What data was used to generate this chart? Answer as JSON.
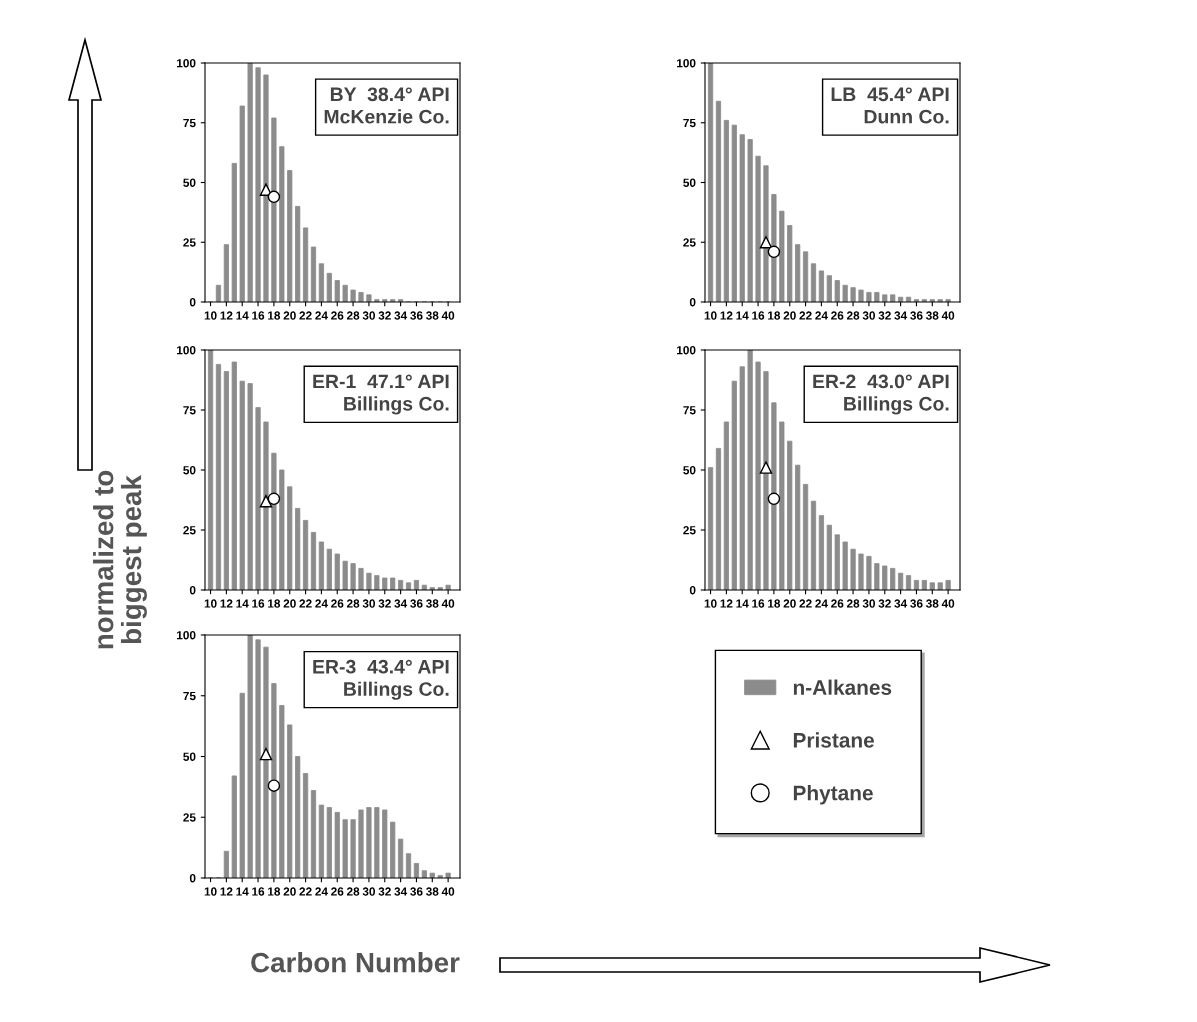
{
  "chart_data": [
    {
      "type": "bar",
      "x": [
        10,
        11,
        12,
        13,
        14,
        15,
        16,
        17,
        18,
        19,
        20,
        21,
        22,
        23,
        24,
        25,
        26,
        27,
        28,
        29,
        30,
        31,
        32,
        33,
        34,
        35,
        36,
        37,
        38,
        39,
        40
      ],
      "xlim": [
        9.3,
        41.5
      ],
      "xticks": [
        10,
        12,
        14,
        16,
        18,
        20,
        22,
        24,
        26,
        28,
        30,
        32,
        34,
        36,
        38,
        40
      ],
      "ylim": [
        0,
        100
      ],
      "yticks": [
        0,
        25,
        50,
        75,
        100
      ],
      "annotations": [
        "BY  38.4° API\nMcKenzie Co."
      ],
      "legend": "bottom right",
      "series": [
        {
          "name": "n-Alkanes",
          "color": "#8c8c8c",
          "values": [
            0,
            7,
            24,
            58,
            82,
            100,
            98,
            95,
            77,
            65,
            55,
            40,
            31,
            23,
            16,
            12,
            9,
            7,
            5,
            4,
            3,
            1,
            1,
            1,
            1,
            0,
            0,
            0,
            0,
            0,
            0
          ]
        },
        {
          "name": "Pristane",
          "type": "scatter",
          "marker": "triangle",
          "color": "#ffffff",
          "values": [
            null,
            null,
            null,
            null,
            null,
            null,
            null,
            47,
            null,
            null,
            null,
            null,
            null,
            null,
            null,
            null,
            null,
            null,
            null,
            null,
            null,
            null,
            null,
            null,
            null,
            null,
            null,
            null,
            null,
            null,
            null
          ]
        },
        {
          "name": "Phytane",
          "type": "scatter",
          "marker": "circle",
          "color": "#ffffff",
          "values": [
            null,
            null,
            null,
            null,
            null,
            null,
            null,
            null,
            44,
            null,
            null,
            null,
            null,
            null,
            null,
            null,
            null,
            null,
            null,
            null,
            null,
            null,
            null,
            null,
            null,
            null,
            null,
            null,
            null,
            null,
            null
          ]
        }
      ]
    },
    {
      "type": "bar",
      "x": [
        10,
        11,
        12,
        13,
        14,
        15,
        16,
        17,
        18,
        19,
        20,
        21,
        22,
        23,
        24,
        25,
        26,
        27,
        28,
        29,
        30,
        31,
        32,
        33,
        34,
        35,
        36,
        37,
        38,
        39,
        40
      ],
      "xlim": [
        9.3,
        41.5
      ],
      "xticks": [
        10,
        12,
        14,
        16,
        18,
        20,
        22,
        24,
        26,
        28,
        30,
        32,
        34,
        36,
        38,
        40
      ],
      "ylim": [
        0,
        100
      ],
      "yticks": [
        0,
        25,
        50,
        75,
        100
      ],
      "annotations": [
        "LB  45.4° API\nDunn Co."
      ],
      "series": [
        {
          "color": "#8c8c8c",
          "values": [
            100,
            84,
            76,
            74,
            70,
            68,
            61,
            57,
            45,
            38,
            32,
            24,
            21,
            16,
            13,
            11,
            9,
            7,
            6,
            5,
            4,
            4,
            3,
            3,
            2,
            2,
            1,
            1,
            1,
            1,
            1
          ]
        },
        {
          "type": "scatter",
          "marker": "triangle",
          "color": "#ffffff",
          "values": [
            null,
            null,
            null,
            null,
            null,
            null,
            null,
            25,
            null,
            null,
            null,
            null,
            null,
            null,
            null,
            null,
            null,
            null,
            null,
            null,
            null,
            null,
            null,
            null,
            null,
            null,
            null,
            null,
            null,
            null,
            null
          ]
        },
        {
          "type": "scatter",
          "marker": "circle",
          "color": "#ffffff",
          "values": [
            null,
            null,
            null,
            null,
            null,
            null,
            null,
            null,
            21,
            null,
            null,
            null,
            null,
            null,
            null,
            null,
            null,
            null,
            null,
            null,
            null,
            null,
            null,
            null,
            null,
            null,
            null,
            null,
            null,
            null,
            null
          ]
        }
      ]
    },
    {
      "type": "bar",
      "x": [
        10,
        11,
        12,
        13,
        14,
        15,
        16,
        17,
        18,
        19,
        20,
        21,
        22,
        23,
        24,
        25,
        26,
        27,
        28,
        29,
        30,
        31,
        32,
        33,
        34,
        35,
        36,
        37,
        38,
        39,
        40
      ],
      "xlim": [
        9.3,
        41.5
      ],
      "xticks": [
        10,
        12,
        14,
        16,
        18,
        20,
        22,
        24,
        26,
        28,
        30,
        32,
        34,
        36,
        38,
        40
      ],
      "ylim": [
        0,
        100
      ],
      "yticks": [
        0,
        25,
        50,
        75,
        100
      ],
      "annotations": [
        "ER-1  47.1° API\nBillings Co."
      ],
      "series": [
        {
          "color": "#8c8c8c",
          "values": [
            100,
            94,
            91,
            95,
            87,
            86,
            76,
            70,
            57,
            50,
            43,
            34,
            29,
            24,
            20,
            17,
            15,
            12,
            11,
            9,
            7,
            6,
            5,
            5,
            4,
            3,
            4,
            2,
            1,
            1,
            2
          ]
        },
        {
          "type": "scatter",
          "marker": "triangle",
          "color": "#ffffff",
          "values": [
            null,
            null,
            null,
            null,
            null,
            null,
            null,
            37,
            null,
            null,
            null,
            null,
            null,
            null,
            null,
            null,
            null,
            null,
            null,
            null,
            null,
            null,
            null,
            null,
            null,
            null,
            null,
            null,
            null,
            null,
            null
          ]
        },
        {
          "type": "scatter",
          "marker": "circle",
          "color": "#ffffff",
          "values": [
            null,
            null,
            null,
            null,
            null,
            null,
            null,
            null,
            38,
            null,
            null,
            null,
            null,
            null,
            null,
            null,
            null,
            null,
            null,
            null,
            null,
            null,
            null,
            null,
            null,
            null,
            null,
            null,
            null,
            null,
            null
          ]
        }
      ]
    },
    {
      "type": "bar",
      "x": [
        10,
        11,
        12,
        13,
        14,
        15,
        16,
        17,
        18,
        19,
        20,
        21,
        22,
        23,
        24,
        25,
        26,
        27,
        28,
        29,
        30,
        31,
        32,
        33,
        34,
        35,
        36,
        37,
        38,
        39,
        40
      ],
      "xlim": [
        9.3,
        41.5
      ],
      "xticks": [
        10,
        12,
        14,
        16,
        18,
        20,
        22,
        24,
        26,
        28,
        30,
        32,
        34,
        36,
        38,
        40
      ],
      "ylim": [
        0,
        100
      ],
      "yticks": [
        0,
        25,
        50,
        75,
        100
      ],
      "annotations": [
        "ER-2  43.0° API\nBillings Co."
      ],
      "series": [
        {
          "color": "#8c8c8c",
          "values": [
            51,
            59,
            70,
            87,
            93,
            100,
            95,
            91,
            78,
            70,
            62,
            52,
            44,
            37,
            31,
            27,
            23,
            20,
            17,
            15,
            14,
            11,
            10,
            9,
            7,
            6,
            4,
            4,
            3,
            3,
            4
          ]
        },
        {
          "type": "scatter",
          "marker": "triangle",
          "color": "#ffffff",
          "values": [
            null,
            null,
            null,
            null,
            null,
            null,
            null,
            51,
            null,
            null,
            null,
            null,
            null,
            null,
            null,
            null,
            null,
            null,
            null,
            null,
            null,
            null,
            null,
            null,
            null,
            null,
            null,
            null,
            null,
            null,
            null
          ]
        },
        {
          "type": "scatter",
          "marker": "circle",
          "color": "#ffffff",
          "values": [
            null,
            null,
            null,
            null,
            null,
            null,
            null,
            null,
            38,
            null,
            null,
            null,
            null,
            null,
            null,
            null,
            null,
            null,
            null,
            null,
            null,
            null,
            null,
            null,
            null,
            null,
            null,
            null,
            null,
            null,
            null
          ]
        }
      ]
    },
    {
      "type": "bar",
      "x": [
        10,
        11,
        12,
        13,
        14,
        15,
        16,
        17,
        18,
        19,
        20,
        21,
        22,
        23,
        24,
        25,
        26,
        27,
        28,
        29,
        30,
        31,
        32,
        33,
        34,
        35,
        36,
        37,
        38,
        39,
        40
      ],
      "xlim": [
        9.3,
        41.5
      ],
      "xticks": [
        10,
        12,
        14,
        16,
        18,
        20,
        22,
        24,
        26,
        28,
        30,
        32,
        34,
        36,
        38,
        40
      ],
      "ylim": [
        0,
        100
      ],
      "yticks": [
        0,
        25,
        50,
        75,
        100
      ],
      "annotations": [
        "ER-3  43.4° API\nBillings Co."
      ],
      "xlabel": "Carbon Number",
      "ylabel": "normalized to\nbiggest peak",
      "series": [
        {
          "color": "#8c8c8c",
          "values": [
            0,
            0,
            11,
            42,
            76,
            100,
            98,
            95,
            80,
            71,
            63,
            50,
            43,
            36,
            30,
            29,
            27,
            24,
            24,
            28,
            29,
            29,
            28,
            23,
            16,
            10,
            6,
            3,
            2,
            1,
            2
          ]
        },
        {
          "type": "scatter",
          "marker": "triangle",
          "color": "#ffffff",
          "values": [
            null,
            null,
            null,
            null,
            null,
            null,
            null,
            51,
            null,
            null,
            null,
            null,
            null,
            null,
            null,
            null,
            null,
            null,
            null,
            null,
            null,
            null,
            null,
            null,
            null,
            null,
            null,
            null,
            null,
            null,
            null
          ]
        },
        {
          "type": "scatter",
          "marker": "circle",
          "color": "#ffffff",
          "values": [
            null,
            null,
            null,
            null,
            null,
            null,
            null,
            null,
            38,
            null,
            null,
            null,
            null,
            null,
            null,
            null,
            null,
            null,
            null,
            null,
            null,
            null,
            null,
            null,
            null,
            null,
            null,
            null,
            null,
            null,
            null
          ]
        }
      ]
    }
  ]
}
